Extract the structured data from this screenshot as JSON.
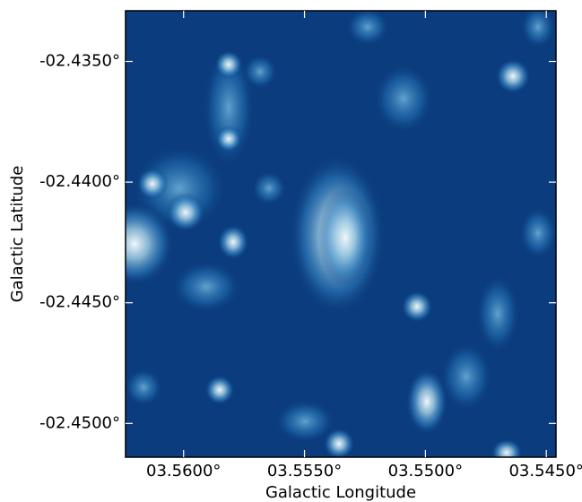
{
  "chart_data": {
    "type": "image",
    "x_label": "Galactic Longitude",
    "y_label": "Galactic Latitude",
    "xlim": [
      3.5624,
      3.5446
    ],
    "ylim": [
      -2.4514,
      -2.4329
    ],
    "xticks": [
      {
        "value": 3.56,
        "label": "03.5600°"
      },
      {
        "value": 3.555,
        "label": "03.5550°"
      },
      {
        "value": 3.55,
        "label": "03.5500°"
      },
      {
        "value": 3.545,
        "label": "03.5450°"
      }
    ],
    "yticks": [
      {
        "value": -2.435,
        "label": "-02.4350°"
      },
      {
        "value": -2.44,
        "label": "-02.4400°"
      },
      {
        "value": -2.445,
        "label": "-02.4450°"
      },
      {
        "value": -2.45,
        "label": "-02.4500°"
      }
    ],
    "colormap": "Blues_r"
  }
}
